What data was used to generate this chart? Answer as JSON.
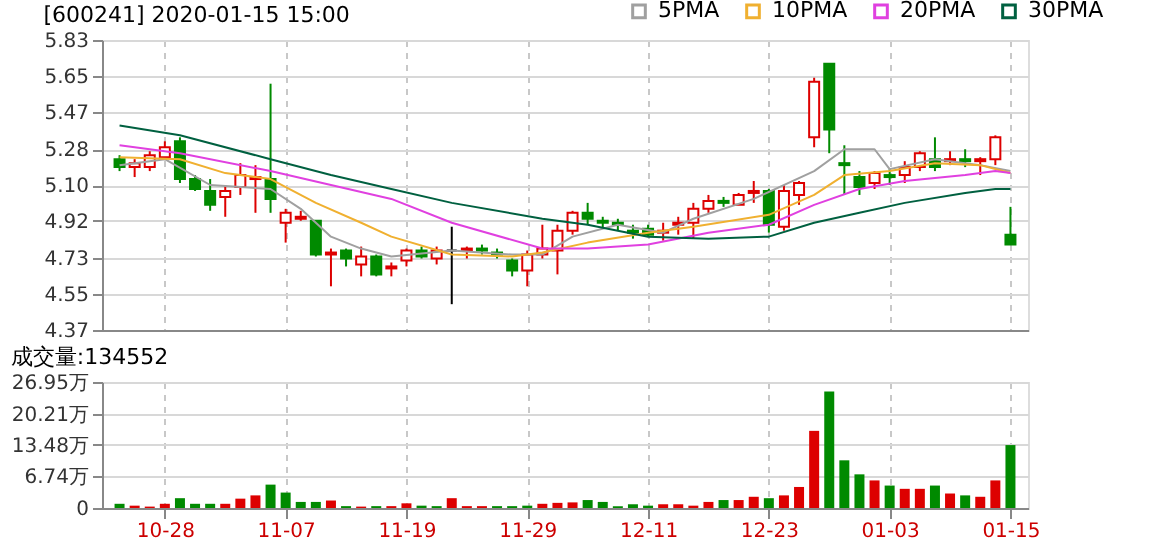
{
  "chart_data": [
    {
      "type": "candlestick",
      "title": "[600241] 2020-01-15 15:00",
      "ohlc": [
        [
          5.23,
          5.25,
          5.17,
          5.19
        ],
        [
          5.19,
          5.23,
          5.14,
          5.21
        ],
        [
          5.19,
          5.27,
          5.17,
          5.25
        ],
        [
          5.24,
          5.32,
          5.23,
          5.29
        ],
        [
          5.32,
          5.34,
          5.11,
          5.13
        ],
        [
          5.13,
          5.15,
          5.07,
          5.08
        ],
        [
          5.07,
          5.13,
          4.97,
          5.0
        ],
        [
          5.04,
          5.1,
          4.94,
          5.07
        ],
        [
          5.09,
          5.21,
          5.05,
          5.15
        ],
        [
          5.13,
          5.2,
          4.96,
          5.14
        ],
        [
          5.13,
          5.61,
          4.96,
          5.03
        ],
        [
          4.91,
          4.98,
          4.81,
          4.96
        ],
        [
          4.93,
          4.97,
          4.92,
          4.94
        ],
        [
          4.92,
          4.92,
          4.74,
          4.75
        ],
        [
          4.75,
          4.78,
          4.59,
          4.76
        ],
        [
          4.77,
          4.78,
          4.69,
          4.73
        ],
        [
          4.7,
          4.79,
          4.64,
          4.74
        ],
        [
          4.74,
          4.75,
          4.64,
          4.65
        ],
        [
          4.68,
          4.71,
          4.64,
          4.69
        ],
        [
          4.72,
          4.78,
          4.69,
          4.77
        ],
        [
          4.77,
          4.79,
          4.73,
          4.74
        ],
        [
          4.73,
          4.79,
          4.7,
          4.77
        ],
        [
          4.77,
          4.89,
          4.5,
          4.77
        ],
        [
          4.77,
          4.79,
          4.73,
          4.78
        ],
        [
          4.78,
          4.8,
          4.75,
          4.77
        ],
        [
          4.76,
          4.78,
          4.73,
          4.75
        ],
        [
          4.72,
          4.73,
          4.64,
          4.67
        ],
        [
          4.67,
          4.77,
          4.59,
          4.75
        ],
        [
          4.75,
          4.9,
          4.73,
          4.78
        ],
        [
          4.77,
          4.9,
          4.65,
          4.87
        ],
        [
          4.87,
          4.97,
          4.85,
          4.96
        ],
        [
          4.96,
          5.01,
          4.9,
          4.93
        ],
        [
          4.92,
          4.94,
          4.88,
          4.91
        ],
        [
          4.91,
          4.93,
          4.87,
          4.9
        ],
        [
          4.87,
          4.9,
          4.83,
          4.86
        ],
        [
          4.88,
          4.9,
          4.84,
          4.85
        ],
        [
          4.86,
          4.91,
          4.82,
          4.87
        ],
        [
          4.9,
          4.94,
          4.85,
          4.91
        ],
        [
          4.91,
          5.01,
          4.83,
          4.98
        ],
        [
          4.98,
          5.05,
          4.96,
          5.02
        ],
        [
          5.02,
          5.04,
          4.99,
          5.01
        ],
        [
          5.0,
          5.06,
          5.0,
          5.05
        ],
        [
          5.06,
          5.12,
          5.01,
          5.07
        ],
        [
          5.07,
          5.08,
          4.86,
          4.9
        ],
        [
          4.89,
          5.1,
          4.87,
          5.07
        ],
        [
          5.05,
          5.12,
          5.0,
          5.11
        ],
        [
          5.34,
          5.64,
          5.29,
          5.62
        ],
        [
          5.71,
          5.71,
          5.26,
          5.38
        ],
        [
          5.21,
          5.3,
          5.05,
          5.2
        ],
        [
          5.14,
          5.17,
          5.05,
          5.09
        ],
        [
          5.11,
          5.17,
          5.08,
          5.16
        ],
        [
          5.15,
          5.18,
          5.1,
          5.14
        ],
        [
          5.15,
          5.22,
          5.11,
          5.19
        ],
        [
          5.19,
          5.27,
          5.17,
          5.26
        ],
        [
          5.23,
          5.34,
          5.17,
          5.19
        ],
        [
          5.22,
          5.27,
          5.2,
          5.23
        ],
        [
          5.23,
          5.28,
          5.19,
          5.22
        ],
        [
          5.22,
          5.24,
          5.15,
          5.23
        ],
        [
          5.23,
          5.35,
          5.2,
          5.34
        ],
        [
          4.85,
          4.99,
          4.8,
          4.8
        ]
      ],
      "colors": [
        "#008a00",
        "#dd0000",
        "#dd0000",
        "#dd0000",
        "#008a00",
        "#008a00",
        "#008a00",
        "#dd0000",
        "#dd0000",
        "#dd0000",
        "#008a00",
        "#dd0000",
        "#dd0000",
        "#008a00",
        "#dd0000",
        "#008a00",
        "#dd0000",
        "#008a00",
        "#dd0000",
        "#dd0000",
        "#008a00",
        "#dd0000",
        "#000000",
        "#dd0000",
        "#008a00",
        "#008a00",
        "#008a00",
        "#dd0000",
        "#dd0000",
        "#dd0000",
        "#dd0000",
        "#008a00",
        "#008a00",
        "#008a00",
        "#008a00",
        "#008a00",
        "#dd0000",
        "#dd0000",
        "#dd0000",
        "#dd0000",
        "#008a00",
        "#dd0000",
        "#dd0000",
        "#008a00",
        "#dd0000",
        "#dd0000",
        "#dd0000",
        "#008a00",
        "#008a00",
        "#008a00",
        "#dd0000",
        "#008a00",
        "#dd0000",
        "#dd0000",
        "#008a00",
        "#dd0000",
        "#008a00",
        "#dd0000",
        "#dd0000",
        "#008a00"
      ],
      "series": [
        {
          "name": "5PMA",
          "type": "line",
          "color": "#a0a0a0",
          "values": [
            5.2,
            null,
            null,
            5.23,
            null,
            null,
            5.1,
            null,
            null,
            null,
            5.08,
            null,
            4.98,
            null,
            4.84,
            null,
            4.78,
            null,
            4.74,
            null,
            null,
            null,
            4.77,
            null,
            null,
            null,
            4.75,
            null,
            4.75,
            null,
            4.84,
            null,
            null,
            4.9,
            null,
            null,
            4.86,
            null,
            4.93,
            null,
            null,
            null,
            5.03,
            null,
            null,
            null,
            5.17,
            null,
            5.28,
            null,
            5.28,
            5.18,
            null,
            null,
            5.23,
            null,
            null,
            5.2,
            null,
            5.17
          ]
        },
        {
          "name": "10PMA",
          "type": "line",
          "color": "#f0b030",
          "values": [
            5.24,
            null,
            null,
            null,
            5.23,
            null,
            null,
            5.16,
            null,
            null,
            5.13,
            null,
            null,
            5.01,
            null,
            null,
            4.91,
            null,
            4.84,
            null,
            null,
            null,
            4.75,
            null,
            null,
            null,
            4.74,
            null,
            4.76,
            null,
            null,
            4.81,
            null,
            null,
            null,
            4.86,
            null,
            null,
            4.89,
            null,
            null,
            null,
            null,
            4.95,
            null,
            null,
            5.05,
            null,
            5.15,
            null,
            null,
            5.17,
            null,
            null,
            5.21,
            null,
            null,
            5.2,
            null,
            5.16
          ]
        },
        {
          "name": "20PMA",
          "type": "line",
          "color": "#e040e0",
          "values": [
            5.3,
            null,
            null,
            null,
            5.26,
            null,
            null,
            null,
            null,
            null,
            5.17,
            null,
            null,
            null,
            5.1,
            null,
            null,
            null,
            5.03,
            null,
            null,
            null,
            4.91,
            null,
            null,
            null,
            null,
            null,
            4.78,
            null,
            null,
            4.78,
            null,
            null,
            null,
            4.8,
            null,
            null,
            null,
            4.86,
            null,
            null,
            null,
            4.9,
            null,
            null,
            5.0,
            null,
            null,
            5.08,
            null,
            null,
            5.12,
            null,
            null,
            null,
            5.15,
            null,
            5.17,
            5.16
          ]
        },
        {
          "name": "30PMA",
          "type": "line",
          "color": "#006040",
          "values": [
            5.4,
            null,
            null,
            null,
            5.35,
            null,
            null,
            null,
            null,
            null,
            5.23,
            null,
            null,
            null,
            5.15,
            null,
            null,
            null,
            5.08,
            null,
            null,
            null,
            5.01,
            null,
            null,
            null,
            null,
            null,
            4.93,
            null,
            null,
            4.9,
            null,
            null,
            null,
            4.84,
            null,
            null,
            null,
            4.83,
            null,
            null,
            null,
            4.84,
            null,
            null,
            4.91,
            null,
            null,
            4.96,
            null,
            null,
            5.01,
            null,
            null,
            null,
            5.06,
            null,
            5.08,
            5.08
          ]
        }
      ],
      "ylim": [
        4.37,
        5.83
      ],
      "yticks": [
        4.37,
        4.55,
        4.73,
        4.92,
        {
          "value": 5.1,
          "label": "5.10"
        },
        5.28,
        5.47,
        5.65,
        5.83
      ],
      "grid": true,
      "legend": "top right",
      "tick_labels": "y"
    },
    {
      "type": "bar",
      "title": "成交量:134552",
      "categories": [
        null,
        null,
        null,
        "10-28",
        null,
        null,
        null,
        null,
        null,
        null,
        null,
        "11-07",
        null,
        null,
        null,
        null,
        null,
        null,
        null,
        "11-19",
        null,
        null,
        null,
        null,
        null,
        null,
        null,
        "11-29",
        null,
        null,
        null,
        null,
        null,
        null,
        null,
        "12-11",
        null,
        null,
        null,
        null,
        null,
        null,
        null,
        "12-23",
        null,
        null,
        null,
        null,
        null,
        null,
        null,
        "01-03",
        null,
        null,
        null,
        null,
        null,
        null,
        null,
        "01-15"
      ],
      "values": [
        0.9,
        0.5,
        0.3,
        0.9,
        2.1,
        0.9,
        0.9,
        0.9,
        2.0,
        2.7,
        5.0,
        3.3,
        1.3,
        1.3,
        1.6,
        0.4,
        0.3,
        0.4,
        0.4,
        1.0,
        0.5,
        0.4,
        2.1,
        0.4,
        0.4,
        0.4,
        0.4,
        0.5,
        0.9,
        1.1,
        1.2,
        1.7,
        1.3,
        0.4,
        0.8,
        0.5,
        0.8,
        0.8,
        0.5,
        1.3,
        1.7,
        1.7,
        2.4,
        2.1,
        2.7,
        4.5,
        16.5,
        24.9,
        10.2,
        7.2,
        5.9,
        4.8,
        4.1,
        4.1,
        4.8,
        3.1,
        2.7,
        2.4,
        5.9,
        13.46
      ],
      "colors": [
        "#008a00",
        "#dd0000",
        "#dd0000",
        "#dd0000",
        "#008a00",
        "#008a00",
        "#008a00",
        "#dd0000",
        "#dd0000",
        "#dd0000",
        "#008a00",
        "#008a00",
        "#008a00",
        "#008a00",
        "#dd0000",
        "#008a00",
        "#dd0000",
        "#008a00",
        "#dd0000",
        "#dd0000",
        "#008a00",
        "#008a00",
        "#dd0000",
        "#dd0000",
        "#dd0000",
        "#008a00",
        "#008a00",
        "#008a00",
        "#dd0000",
        "#dd0000",
        "#dd0000",
        "#008a00",
        "#008a00",
        "#008a00",
        "#008a00",
        "#008a00",
        "#dd0000",
        "#dd0000",
        "#dd0000",
        "#dd0000",
        "#008a00",
        "#dd0000",
        "#dd0000",
        "#008a00",
        "#dd0000",
        "#dd0000",
        "#dd0000",
        "#008a00",
        "#008a00",
        "#008a00",
        "#dd0000",
        "#008a00",
        "#dd0000",
        "#dd0000",
        "#008a00",
        "#dd0000",
        "#008a00",
        "#dd0000",
        "#dd0000",
        "#008a00"
      ],
      "ylim": [
        0,
        26.95
      ],
      "yticks": [
        0,
        {
          "value": 6.74,
          "label": "6.74万"
        },
        {
          "value": 13.48,
          "label": "13.48万"
        },
        {
          "value": 20.21,
          "label": "20.21万"
        },
        {
          "value": 26.95,
          "label": "26.95万"
        }
      ],
      "grid": true
    }
  ]
}
